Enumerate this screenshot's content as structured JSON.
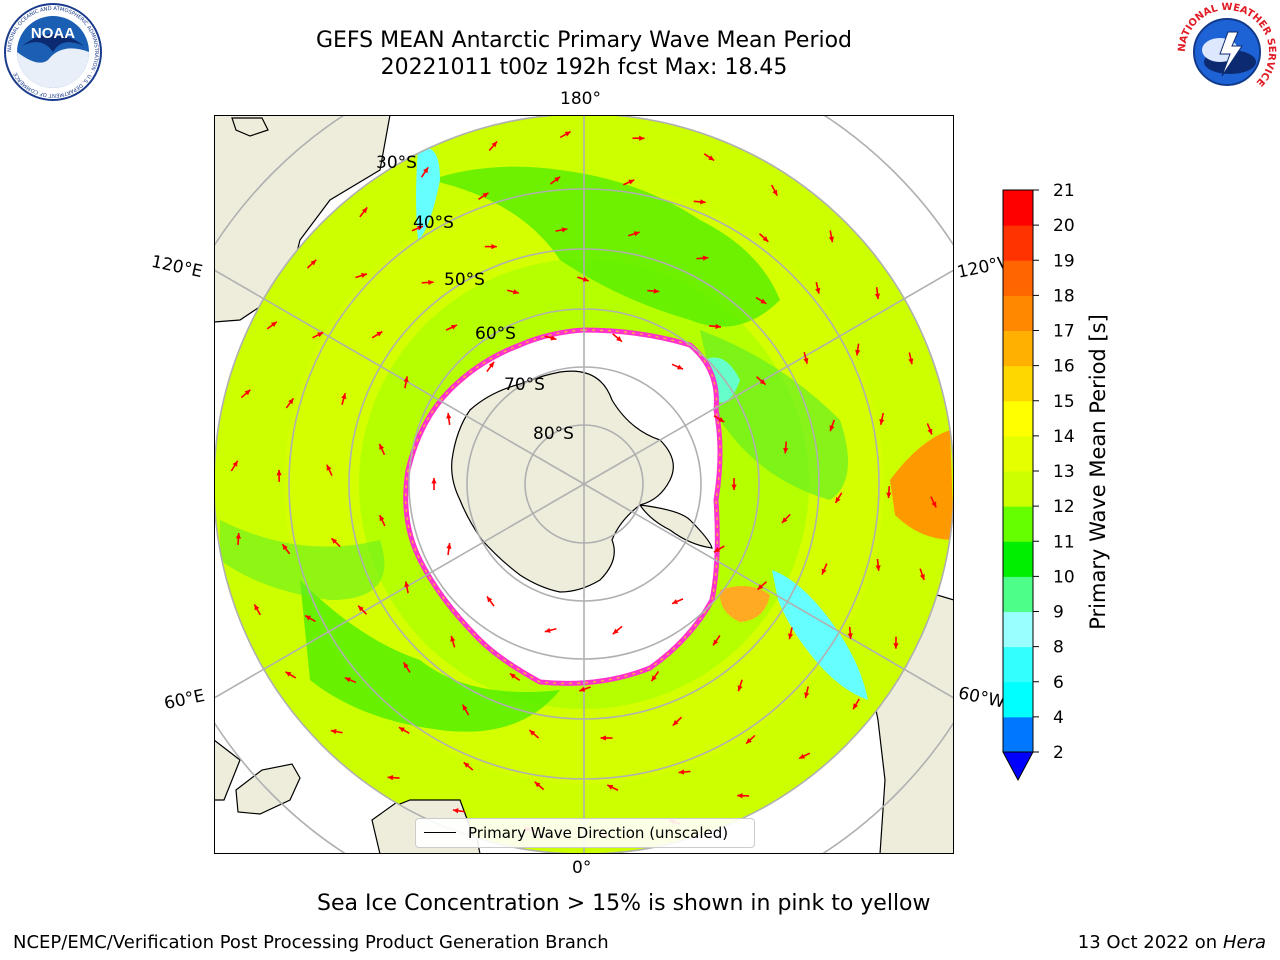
{
  "title": {
    "line1": "GEFS MEAN Antarctic Primary Wave Mean Period",
    "line2": "20221011 t00z 192h fcst   Max: 18.45"
  },
  "map": {
    "longitude_labels": {
      "top": "180°",
      "bottom": "0°",
      "upper_left": "120°E",
      "upper_right": "120°W",
      "lower_left": "60°E",
      "lower_right": "60°W"
    },
    "latitude_labels": [
      "30°S",
      "40°S",
      "50°S",
      "60°S",
      "70°S",
      "80°S"
    ],
    "legend": {
      "label": "Primary Wave Direction (unscaled)"
    },
    "colors": {
      "land": "#eeeddc",
      "sea_ice_edge": "#ff33cc",
      "arrow": "#ff0000",
      "grid": "#b0b0b0"
    }
  },
  "colorbar": {
    "label": "Primary Wave Mean Period [s]",
    "ticks": [
      "2",
      "4",
      "6",
      "8",
      "9",
      "10",
      "11",
      "12",
      "13",
      "14",
      "15",
      "16",
      "17",
      "18",
      "19",
      "20",
      "21"
    ],
    "colors": [
      "#0000ff",
      "#0077ff",
      "#00ffff",
      "#33ffff",
      "#99ffff",
      "#4dff88",
      "#00ee00",
      "#66ff00",
      "#ccff00",
      "#e6ff00",
      "#ffff00",
      "#ffd700",
      "#ffb000",
      "#ff8800",
      "#ff6600",
      "#ff3300",
      "#ff0000"
    ]
  },
  "caption": "Sea Ice Concentration > 15% is shown in pink to yellow",
  "footer": {
    "left": "NCEP/EMC/Verification Post Processing Product Generation Branch",
    "right_prefix": "13 Oct 2022 on ",
    "right_host": "Hera"
  },
  "logos": {
    "noaa": {
      "text": "NOAA",
      "ring_text": "NATIONAL OCEANIC AND ATMOSPHERIC ADMINISTRATION · U.S. DEPARTMENT OF COMMERCE"
    },
    "nws": {
      "ring_text": "NATIONAL WEATHER SERVICE"
    }
  }
}
